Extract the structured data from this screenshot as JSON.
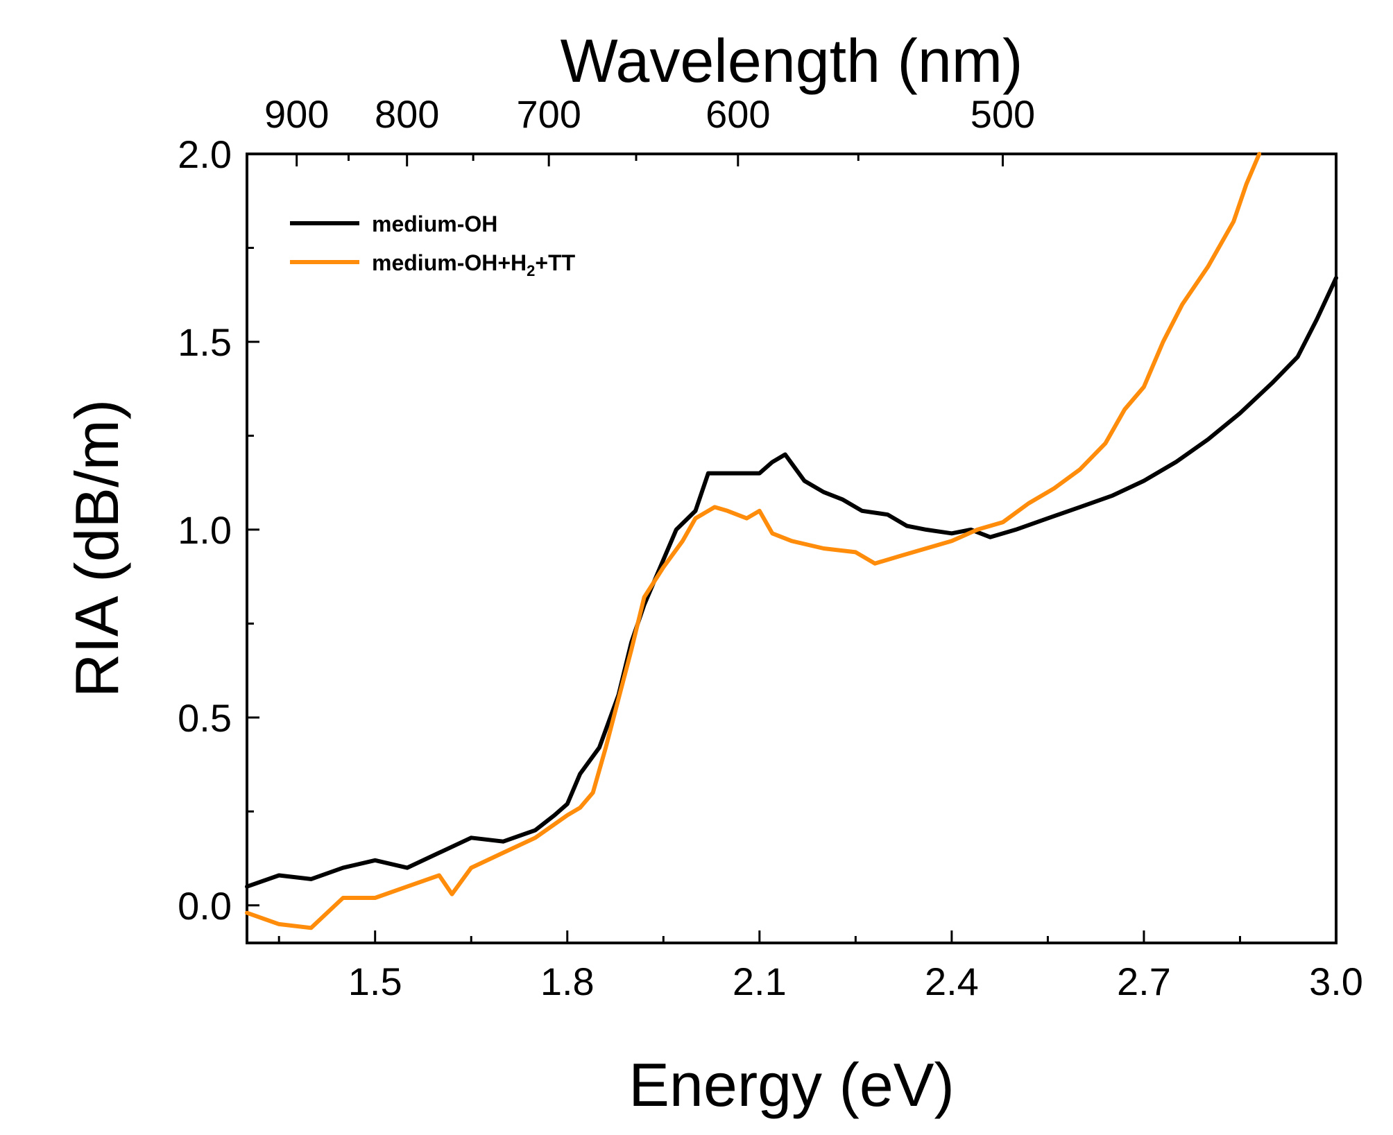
{
  "chart_data": {
    "type": "line",
    "title": "",
    "xlabel": "Energy (eV)",
    "ylabel": "RIA (dB/m)",
    "x2label": "Wavelength (nm)",
    "xlim": [
      1.3,
      3.0
    ],
    "ylim": [
      -0.1,
      2.0
    ],
    "x_ticks": [
      1.5,
      1.8,
      2.1,
      2.4,
      2.7,
      3.0
    ],
    "x_tick_labels": [
      "1.5",
      "1.8",
      "2.1",
      "2.4",
      "2.7",
      "3.0"
    ],
    "x_minor_ticks": [
      1.35,
      1.65,
      1.95,
      2.25,
      2.55,
      2.85
    ],
    "y_ticks": [
      0.0,
      0.5,
      1.0,
      1.5,
      2.0
    ],
    "y_tick_labels": [
      "0.0",
      "0.5",
      "1.0",
      "1.5",
      "2.0"
    ],
    "y_minor_ticks": [
      0.25,
      0.75,
      1.25,
      1.75
    ],
    "top_axis": {
      "ticks_nm": [
        900,
        800,
        700,
        600,
        500
      ],
      "tick_labels": [
        "900",
        "800",
        "700",
        "600",
        "500"
      ],
      "minor_ticks_nm": [
        850,
        750,
        650,
        550
      ]
    },
    "grid": false,
    "legend_position": "top-left",
    "series": [
      {
        "name": "medium-OH",
        "color": "#000000",
        "x": [
          1.3,
          1.35,
          1.4,
          1.45,
          1.5,
          1.55,
          1.6,
          1.65,
          1.7,
          1.75,
          1.78,
          1.8,
          1.82,
          1.85,
          1.88,
          1.9,
          1.92,
          1.95,
          1.97,
          2.0,
          2.02,
          2.05,
          2.08,
          2.1,
          2.12,
          2.14,
          2.17,
          2.2,
          2.23,
          2.26,
          2.3,
          2.33,
          2.36,
          2.4,
          2.43,
          2.46,
          2.5,
          2.55,
          2.6,
          2.65,
          2.7,
          2.75,
          2.8,
          2.85,
          2.9,
          2.94,
          2.97,
          3.0
        ],
        "y": [
          0.05,
          0.08,
          0.07,
          0.1,
          0.12,
          0.1,
          0.14,
          0.18,
          0.17,
          0.2,
          0.24,
          0.27,
          0.35,
          0.42,
          0.56,
          0.7,
          0.8,
          0.92,
          1.0,
          1.05,
          1.15,
          1.15,
          1.15,
          1.15,
          1.18,
          1.2,
          1.13,
          1.1,
          1.08,
          1.05,
          1.04,
          1.01,
          1.0,
          0.99,
          1.0,
          0.98,
          1.0,
          1.03,
          1.06,
          1.09,
          1.13,
          1.18,
          1.24,
          1.31,
          1.39,
          1.46,
          1.56,
          1.67
        ]
      },
      {
        "name": "medium-OH+H2+TT",
        "color": "#ff8c0a",
        "x": [
          1.3,
          1.35,
          1.4,
          1.45,
          1.5,
          1.55,
          1.6,
          1.62,
          1.65,
          1.7,
          1.75,
          1.8,
          1.82,
          1.84,
          1.86,
          1.88,
          1.9,
          1.92,
          1.95,
          1.98,
          2.0,
          2.03,
          2.05,
          2.08,
          2.1,
          2.12,
          2.15,
          2.2,
          2.25,
          2.28,
          2.32,
          2.36,
          2.4,
          2.44,
          2.48,
          2.52,
          2.56,
          2.6,
          2.64,
          2.67,
          2.7,
          2.73,
          2.76,
          2.8,
          2.84,
          2.86,
          2.88
        ],
        "y": [
          -0.02,
          -0.05,
          -0.06,
          0.02,
          0.02,
          0.05,
          0.08,
          0.03,
          0.1,
          0.14,
          0.18,
          0.24,
          0.26,
          0.3,
          0.42,
          0.55,
          0.68,
          0.82,
          0.9,
          0.97,
          1.03,
          1.06,
          1.05,
          1.03,
          1.05,
          0.99,
          0.97,
          0.95,
          0.94,
          0.91,
          0.93,
          0.95,
          0.97,
          1.0,
          1.02,
          1.07,
          1.11,
          1.16,
          1.23,
          1.32,
          1.38,
          1.5,
          1.6,
          1.7,
          1.82,
          1.92,
          2.0
        ]
      }
    ]
  }
}
